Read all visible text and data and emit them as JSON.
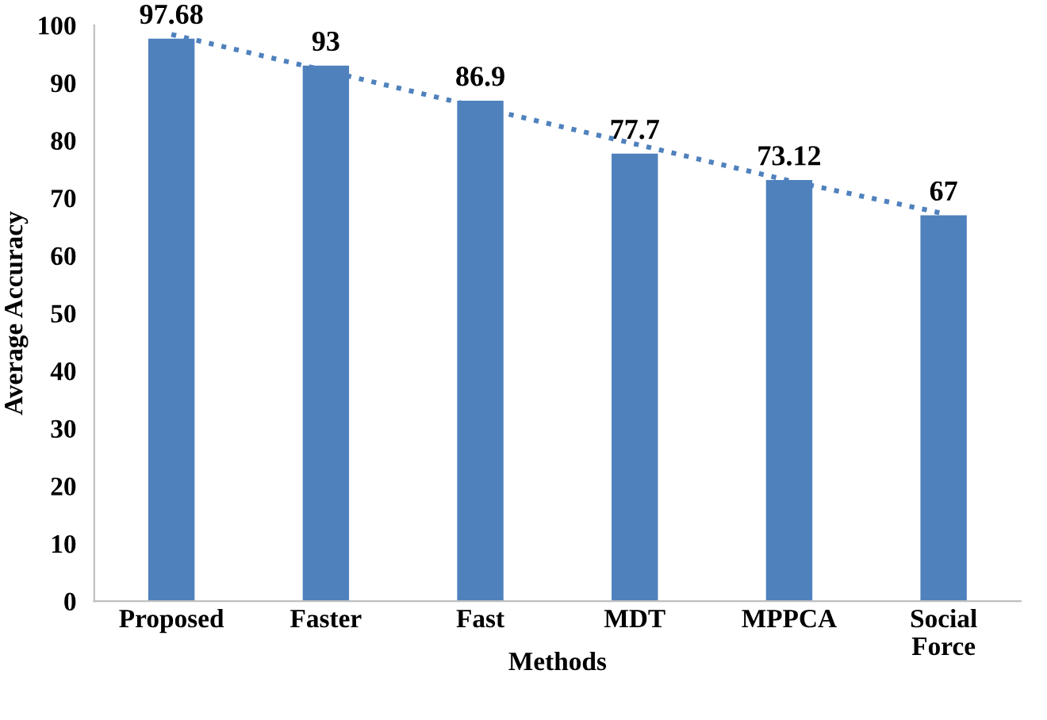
{
  "chart_data": {
    "type": "bar",
    "xlabel": "Methods",
    "ylabel": "Average Accuracy",
    "categories": [
      "Proposed",
      "Faster",
      "Fast",
      "MDT",
      "MPPCA",
      "Social\nForce"
    ],
    "series": [
      {
        "color": "#4f81bd",
        "values": [
          97.68,
          93,
          86.9,
          77.7,
          73.12,
          67
        ],
        "value_labels": [
          "97.68",
          "93",
          "86.9",
          "77.7",
          "73.12",
          "67"
        ]
      },
      {
        "type": "line",
        "color": "#4f81bd",
        "line_style": "dotted",
        "values": [
          98.4,
          92.1,
          85.7,
          79.4,
          73.0,
          67.3
        ]
      }
    ],
    "ylim": [
      0,
      100
    ],
    "yticks": [
      0,
      10,
      20,
      30,
      40,
      50,
      60,
      70,
      80,
      90,
      100
    ],
    "grid": false,
    "legend": false
  }
}
